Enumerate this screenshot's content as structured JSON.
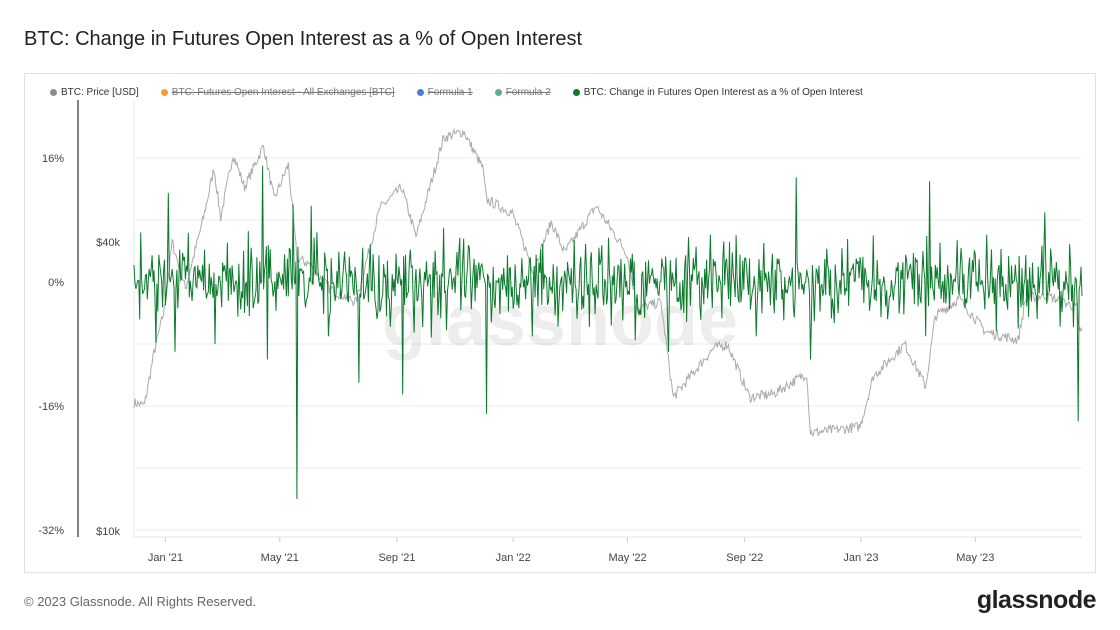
{
  "title": "BTC: Change in Futures Open Interest as a % of Open Interest",
  "legend": [
    {
      "label": "BTC: Price [USD]",
      "color": "#8c8c8c",
      "active": true
    },
    {
      "label": "BTC: Futures Open Interest - All Exchanges [BTC]",
      "color": "#f39c35",
      "active": false
    },
    {
      "label": "Formula 1",
      "color": "#4a7fd0",
      "active": false
    },
    {
      "label": "Formula 2",
      "color": "#5cb08a",
      "active": false
    },
    {
      "label": "BTC: Change in Futures Open Interest as a % of Open Interest",
      "color": "#0b7a2c",
      "active": true
    }
  ],
  "footer": "© 2023 Glassnode. All Rights Reserved.",
  "logo": "glassnode",
  "watermark": "glassnode",
  "chart_data": {
    "type": "line",
    "x_range": [
      "2020-11-29",
      "2023-08-21"
    ],
    "x_ticks": [
      {
        "label": "Jan '21",
        "date": "2021-01-01"
      },
      {
        "label": "May '21",
        "date": "2021-05-01"
      },
      {
        "label": "Sep '21",
        "date": "2021-09-01"
      },
      {
        "label": "Jan '22",
        "date": "2022-01-01"
      },
      {
        "label": "May '22",
        "date": "2022-05-01"
      },
      {
        "label": "Sep '22",
        "date": "2022-09-01"
      },
      {
        "label": "Jan '23",
        "date": "2023-01-01"
      },
      {
        "label": "May '23",
        "date": "2023-05-01"
      }
    ],
    "y_left": {
      "label": "%",
      "range": [
        -32,
        16
      ],
      "ticks": [
        {
          "label": "16%",
          "v": 16
        },
        {
          "label": "0%",
          "v": 0
        },
        {
          "label": "-16%",
          "v": -16
        },
        {
          "label": "-32%",
          "v": -32
        }
      ]
    },
    "y_right": {
      "scale": "log",
      "range": [
        10000,
        75000
      ],
      "ticks": [
        {
          "label": "$40k",
          "v": 40000
        },
        {
          "label": "$10k",
          "v": 10000
        }
      ]
    },
    "series": [
      {
        "name": "BTC: Price [USD]",
        "color": "#aaaaaa",
        "points": [
          [
            "2020-11-29",
            18500
          ],
          [
            "2020-12-10",
            18300
          ],
          [
            "2020-12-20",
            23500
          ],
          [
            "2020-12-31",
            29000
          ],
          [
            "2021-01-08",
            40000
          ],
          [
            "2021-01-22",
            32000
          ],
          [
            "2021-02-10",
            45000
          ],
          [
            "2021-02-21",
            57000
          ],
          [
            "2021-02-28",
            45000
          ],
          [
            "2021-03-13",
            61000
          ],
          [
            "2021-03-25",
            52000
          ],
          [
            "2021-04-14",
            63500
          ],
          [
            "2021-04-25",
            49000
          ],
          [
            "2021-05-10",
            58000
          ],
          [
            "2021-05-19",
            37000
          ],
          [
            "2021-06-01",
            36000
          ],
          [
            "2021-06-22",
            32000
          ],
          [
            "2021-07-20",
            30000
          ],
          [
            "2021-08-14",
            47000
          ],
          [
            "2021-09-06",
            52000
          ],
          [
            "2021-09-21",
            41000
          ],
          [
            "2021-10-20",
            66000
          ],
          [
            "2021-11-10",
            68000
          ],
          [
            "2021-11-30",
            57000
          ],
          [
            "2021-12-04",
            49000
          ],
          [
            "2021-12-31",
            46000
          ],
          [
            "2022-01-22",
            35000
          ],
          [
            "2022-02-10",
            44000
          ],
          [
            "2022-02-24",
            38000
          ],
          [
            "2022-03-29",
            47500
          ],
          [
            "2022-04-30",
            38000
          ],
          [
            "2022-05-12",
            29000
          ],
          [
            "2022-06-05",
            30000
          ],
          [
            "2022-06-18",
            19000
          ],
          [
            "2022-07-30",
            24000
          ],
          [
            "2022-08-14",
            24500
          ],
          [
            "2022-09-06",
            19000
          ],
          [
            "2022-10-01",
            19300
          ],
          [
            "2022-11-05",
            21300
          ],
          [
            "2022-11-09",
            16000
          ],
          [
            "2022-12-31",
            16500
          ],
          [
            "2023-01-14",
            21000
          ],
          [
            "2023-02-16",
            24500
          ],
          [
            "2023-03-10",
            20000
          ],
          [
            "2023-03-20",
            28000
          ],
          [
            "2023-04-14",
            30500
          ],
          [
            "2023-05-12",
            26000
          ],
          [
            "2023-06-15",
            25000
          ],
          [
            "2023-06-23",
            30500
          ],
          [
            "2023-07-14",
            31000
          ],
          [
            "2023-08-16",
            29200
          ],
          [
            "2023-08-17",
            26500
          ],
          [
            "2023-08-21",
            26100
          ]
        ]
      },
      {
        "name": "BTC: Change in Futures Open Interest as a % of Open Interest",
        "color": "#0b7a2c",
        "typical_range": [
          -5,
          5
        ],
        "spikes": [
          [
            "2021-01-04",
            11.5
          ],
          [
            "2021-01-11",
            -9
          ],
          [
            "2021-02-22",
            -8
          ],
          [
            "2021-04-13",
            15
          ],
          [
            "2021-04-18",
            -10
          ],
          [
            "2021-05-15",
            10
          ],
          [
            "2021-05-19",
            -28
          ],
          [
            "2021-06-21",
            -7
          ],
          [
            "2021-07-23",
            -13
          ],
          [
            "2021-09-07",
            -14.5
          ],
          [
            "2021-10-20",
            7
          ],
          [
            "2021-12-04",
            -17
          ],
          [
            "2022-01-21",
            -7
          ],
          [
            "2022-05-09",
            -7.5
          ],
          [
            "2022-06-13",
            -9
          ],
          [
            "2022-09-13",
            -7
          ],
          [
            "2022-10-25",
            13.5
          ],
          [
            "2022-11-09",
            -10
          ],
          [
            "2023-01-14",
            6
          ],
          [
            "2023-03-14",
            13
          ],
          [
            "2023-03-10",
            -7
          ],
          [
            "2023-06-15",
            -6
          ],
          [
            "2023-07-13",
            9
          ],
          [
            "2023-08-17",
            -18
          ]
        ]
      }
    ]
  }
}
